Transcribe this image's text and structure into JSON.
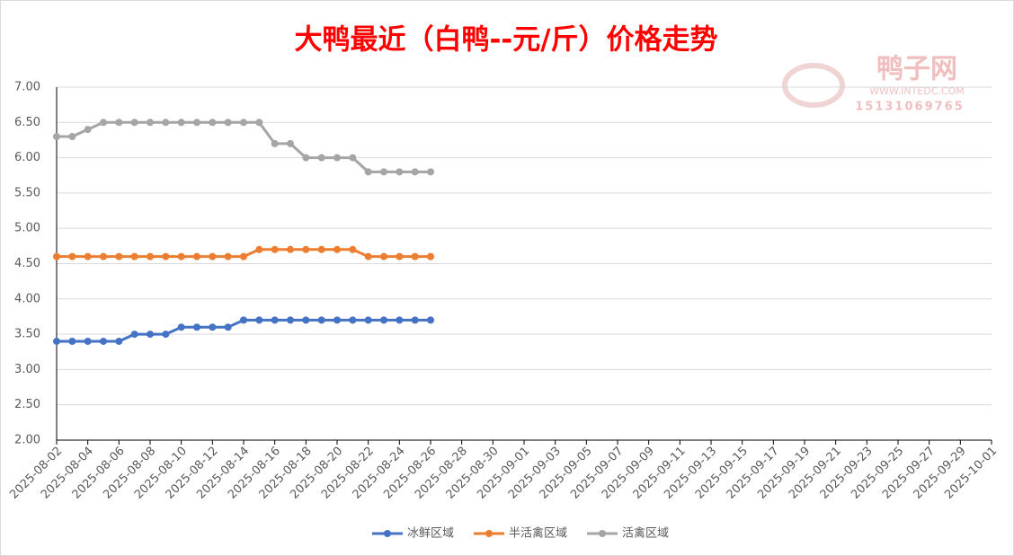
{
  "chart_data": {
    "type": "line",
    "title": "大鸭最近（白鸭--元/斤）价格走势",
    "watermark": {
      "brand": "鸭子网",
      "url": "WWW.INTEDC.COM",
      "phone": "15131069765"
    },
    "categories": [
      "2025-08-02",
      null,
      "2025-08-04",
      null,
      "2025-08-06",
      null,
      "2025-08-08",
      null,
      "2025-08-10",
      null,
      "2025-08-12",
      null,
      "2025-08-14",
      null,
      "2025-08-16",
      null,
      "2025-08-18",
      null,
      "2025-08-20",
      null,
      "2025-08-22",
      null,
      "2025-08-24",
      null,
      "2025-08-26",
      null,
      "2025-08-28",
      null,
      "2025-08-30",
      null,
      "2025-09-01",
      null,
      "2025-09-03",
      null,
      "2025-09-05",
      null,
      "2025-09-07",
      null,
      "2025-09-09",
      null,
      "2025-09-11",
      null,
      "2025-09-13",
      null,
      "2025-09-15",
      null,
      "2025-09-17",
      null,
      "2025-09-19",
      null,
      "2025-09-21",
      null,
      "2025-09-23",
      null,
      "2025-09-25",
      null,
      "2025-09-27",
      null,
      "2025-09-29",
      null,
      "2025-10-01"
    ],
    "series": [
      {
        "name": "冰鲜区域",
        "color": "#4472c4",
        "values": [
          3.4,
          3.4,
          3.4,
          3.4,
          3.4,
          3.5,
          3.5,
          3.5,
          3.6,
          3.6,
          3.6,
          3.6,
          3.7,
          3.7,
          3.7,
          3.7,
          3.7,
          3.7,
          3.7,
          3.7,
          3.7,
          3.7,
          3.7,
          3.7,
          3.7,
          null,
          null,
          null,
          null,
          null,
          null,
          null,
          null,
          null,
          null,
          null,
          null,
          null,
          null,
          null,
          null,
          null,
          null,
          null,
          null,
          null,
          null,
          null,
          null,
          null,
          null,
          null,
          null,
          null,
          null,
          null,
          null,
          null,
          null,
          null,
          null
        ]
      },
      {
        "name": "半活禽区域",
        "color": "#ed7d31",
        "values": [
          4.6,
          4.6,
          4.6,
          4.6,
          4.6,
          4.6,
          4.6,
          4.6,
          4.6,
          4.6,
          4.6,
          4.6,
          4.6,
          4.7,
          4.7,
          4.7,
          4.7,
          4.7,
          4.7,
          4.7,
          4.6,
          4.6,
          4.6,
          4.6,
          4.6,
          null,
          null,
          null,
          null,
          null,
          null,
          null,
          null,
          null,
          null,
          null,
          null,
          null,
          null,
          null,
          null,
          null,
          null,
          null,
          null,
          null,
          null,
          null,
          null,
          null,
          null,
          null,
          null,
          null,
          null,
          null,
          null,
          null,
          null,
          null,
          null
        ]
      },
      {
        "name": "活禽区域",
        "color": "#a5a5a5",
        "values": [
          6.3,
          6.3,
          6.4,
          6.5,
          6.5,
          6.5,
          6.5,
          6.5,
          6.5,
          6.5,
          6.5,
          6.5,
          6.5,
          6.5,
          6.2,
          6.2,
          6.0,
          6.0,
          6.0,
          6.0,
          5.8,
          5.8,
          5.8,
          5.8,
          5.8,
          null,
          null,
          null,
          null,
          null,
          null,
          null,
          null,
          null,
          null,
          null,
          null,
          null,
          null,
          null,
          null,
          null,
          null,
          null,
          null,
          null,
          null,
          null,
          null,
          null,
          null,
          null,
          null,
          null,
          null,
          null,
          null,
          null,
          null,
          null,
          null
        ]
      }
    ],
    "ylim": [
      2,
      7
    ],
    "yticks": [
      {
        "value": 2,
        "label": "2.00"
      },
      {
        "value": 2.5,
        "label": "2.50"
      },
      {
        "value": 3,
        "label": "3.00"
      },
      {
        "value": 3.5,
        "label": "3.50"
      },
      {
        "value": 4,
        "label": "4.00"
      },
      {
        "value": 4.5,
        "label": "4.50"
      },
      {
        "value": 5,
        "label": "5.00"
      },
      {
        "value": 5.5,
        "label": "5.50"
      },
      {
        "value": 6,
        "label": "6.00"
      },
      {
        "value": 6.5,
        "label": "6.50"
      },
      {
        "value": 7,
        "label": "7.00"
      }
    ],
    "grid": true,
    "legend": "bottom"
  }
}
